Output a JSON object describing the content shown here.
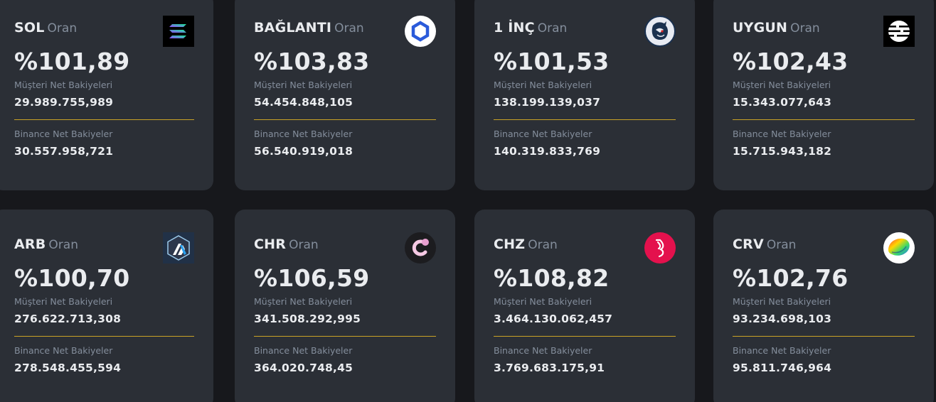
{
  "labels": {
    "oran": "Oran",
    "customer": "Müşteri Net Bakiyeleri",
    "binance": "Binance Net Bakiyeler"
  },
  "cards": [
    {
      "symbol": "SOL",
      "ratio": "%101,89",
      "customer_balance": "29.989.755,989",
      "binance_balance": "30.557.958,721",
      "icon": "solana-icon"
    },
    {
      "symbol": "BAĞLANTI",
      "ratio": "%103,83",
      "customer_balance": "54.454.848,105",
      "binance_balance": "56.540.919,018",
      "icon": "chainlink-icon"
    },
    {
      "symbol": "1 İNÇ",
      "ratio": "%101,53",
      "customer_balance": "138.199.139,037",
      "binance_balance": "140.319.833,769",
      "icon": "1inch-icon"
    },
    {
      "symbol": "UYGUN",
      "ratio": "%102,43",
      "customer_balance": "15.343.077,643",
      "binance_balance": "15.715.943,182",
      "icon": "aptos-icon"
    },
    {
      "symbol": "ARB",
      "ratio": "%100,70",
      "customer_balance": "276.622.713,308",
      "binance_balance": "278.548.455,594",
      "icon": "arbitrum-icon"
    },
    {
      "symbol": "CHR",
      "ratio": "%106,59",
      "customer_balance": "341.508.292,995",
      "binance_balance": "364.020.748,45",
      "icon": "chromia-icon"
    },
    {
      "symbol": "CHZ",
      "ratio": "%108,82",
      "customer_balance": "3.464.130.062,457",
      "binance_balance": "3.769.683.175,91",
      "icon": "chiliz-icon"
    },
    {
      "symbol": "CRV",
      "ratio": "%102,76",
      "customer_balance": "93.234.698,103",
      "binance_balance": "95.811.746,964",
      "icon": "curve-icon"
    }
  ],
  "colors": {
    "background": "#17181c",
    "card": "#2b2f36",
    "divider": "#c9a227",
    "text": "#eaecef",
    "muted": "#848e9c"
  }
}
